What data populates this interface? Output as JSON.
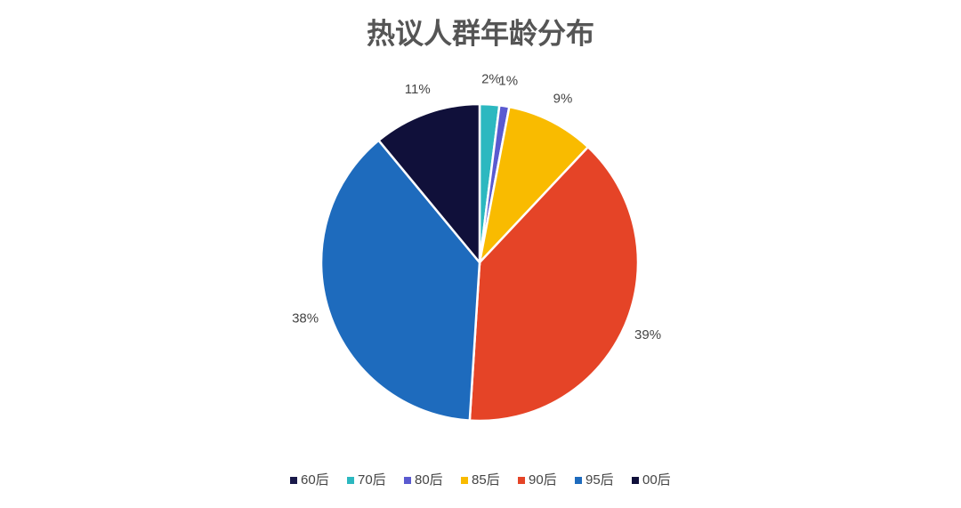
{
  "chart_data": {
    "type": "pie",
    "title": "热议人群年龄分布",
    "categories": [
      "60后",
      "70后",
      "80后",
      "85后",
      "90后",
      "95后",
      "00后"
    ],
    "values": [
      0,
      2,
      1,
      9,
      39,
      38,
      11
    ],
    "value_labels": [
      null,
      "2%",
      "1%",
      "9%",
      "39%",
      "38%",
      "11%"
    ],
    "colors": [
      "#1a1a4a",
      "#2cb8c0",
      "#5a5ad0",
      "#f9bb00",
      "#e54427",
      "#1e6bbd",
      "#10103a"
    ],
    "legend": "bottom"
  }
}
